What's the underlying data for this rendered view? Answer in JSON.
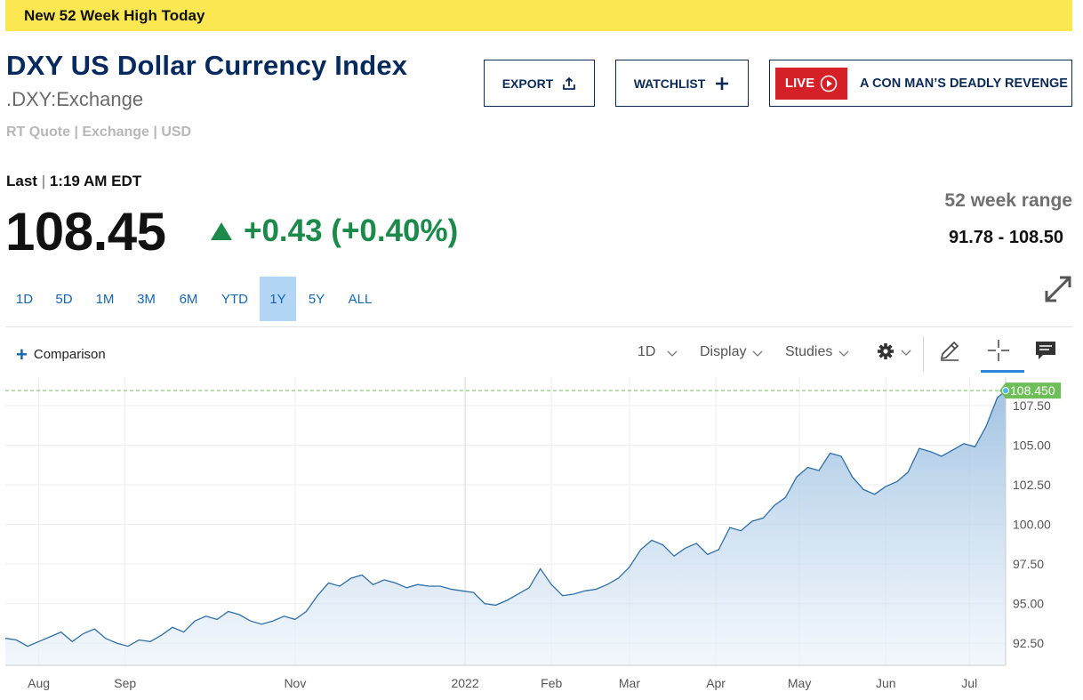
{
  "banner": {
    "text": "New 52 Week High Today"
  },
  "header": {
    "title": "DXY US Dollar Currency Index",
    "symbol": ".DXY:Exchange",
    "quote_type": "RT Quote | Exchange | USD"
  },
  "buttons": {
    "export": "EXPORT",
    "watchlist": "WATCHLIST",
    "live_badge": "LIVE",
    "live_title": "A CON MAN’S DEADLY REVENGE"
  },
  "quote": {
    "last_label": "Last",
    "last_time": "1:19 AM EDT",
    "price": "108.45",
    "change": "+0.43 (+0.40%)",
    "direction": "up",
    "range_label": "52 week range",
    "range_value": "91.78 - 108.50"
  },
  "periods": [
    "1D",
    "5D",
    "1M",
    "3M",
    "6M",
    "YTD",
    "1Y",
    "5Y",
    "ALL"
  ],
  "active_period": "1Y",
  "toolbar": {
    "comparison": "Comparison",
    "interval": "1D",
    "display": "Display",
    "studies": "Studies"
  },
  "icons": {
    "export": "upload-icon",
    "watchlist": "plus-icon",
    "live": "play-circle-icon",
    "expand": "expand-icon",
    "settings": "gear-icon",
    "draw": "pencil-icon",
    "crosshair": "crosshair-icon",
    "comments": "comment-icon"
  },
  "colors": {
    "banner": "#fbe751",
    "title": "#062a5e",
    "up": "#1b8a4a",
    "live": "#d62027",
    "line": "#2f6fa8",
    "current_badge": "#6fbf59",
    "active_period": "#b3d6f7"
  },
  "chart_data": {
    "type": "area",
    "current_value": 108.45,
    "current_label": "108.450",
    "y_ticks": [
      "92.50",
      "95.00",
      "97.50",
      "100.00",
      "102.50",
      "105.00",
      "107.50"
    ],
    "ylim": [
      91.1,
      109.3
    ],
    "x_ticks": [
      "Aug",
      "Sep",
      "Nov",
      "2022",
      "Feb",
      "Mar",
      "Apr",
      "May",
      "Jun",
      "Jul"
    ],
    "x_tick_dates": [
      "2021-08-01",
      "2021-09-01",
      "2021-11-01",
      "2022-01-01",
      "2022-02-01",
      "2022-03-01",
      "2022-04-01",
      "2022-05-01",
      "2022-06-01",
      "2022-07-01"
    ],
    "x_range": [
      "2021-07-20",
      "2022-07-14"
    ],
    "grid": true,
    "series": [
      {
        "x": [
          "2021-07-20",
          "2021-07-24",
          "2021-07-28",
          "2021-08-01",
          "2021-08-05",
          "2021-08-09",
          "2021-08-13",
          "2021-08-17",
          "2021-08-21",
          "2021-08-25",
          "2021-08-29",
          "2021-09-02",
          "2021-09-06",
          "2021-09-10",
          "2021-09-14",
          "2021-09-18",
          "2021-09-22",
          "2021-09-26",
          "2021-09-30",
          "2021-10-04",
          "2021-10-08",
          "2021-10-12",
          "2021-10-16",
          "2021-10-20",
          "2021-10-24",
          "2021-10-28",
          "2021-11-01",
          "2021-11-05",
          "2021-11-09",
          "2021-11-13",
          "2021-11-17",
          "2021-11-21",
          "2021-11-25",
          "2021-11-29",
          "2021-12-03",
          "2021-12-07",
          "2021-12-11",
          "2021-12-15",
          "2021-12-19",
          "2021-12-23",
          "2021-12-27",
          "2021-12-31",
          "2022-01-04",
          "2022-01-08",
          "2022-01-12",
          "2022-01-16",
          "2022-01-20",
          "2022-01-24",
          "2022-01-28",
          "2022-02-01",
          "2022-02-05",
          "2022-02-09",
          "2022-02-13",
          "2022-02-17",
          "2022-02-21",
          "2022-02-25",
          "2022-03-01",
          "2022-03-05",
          "2022-03-09",
          "2022-03-13",
          "2022-03-17",
          "2022-03-21",
          "2022-03-25",
          "2022-03-29",
          "2022-04-02",
          "2022-04-06",
          "2022-04-10",
          "2022-04-14",
          "2022-04-18",
          "2022-04-22",
          "2022-04-26",
          "2022-04-30",
          "2022-05-04",
          "2022-05-08",
          "2022-05-12",
          "2022-05-16",
          "2022-05-20",
          "2022-05-24",
          "2022-05-28",
          "2022-06-01",
          "2022-06-05",
          "2022-06-09",
          "2022-06-13",
          "2022-06-17",
          "2022-06-21",
          "2022-06-25",
          "2022-06-29",
          "2022-07-03",
          "2022-07-07",
          "2022-07-11",
          "2022-07-14"
        ],
        "y": [
          92.8,
          92.7,
          92.3,
          92.6,
          92.9,
          93.2,
          92.6,
          93.1,
          93.4,
          92.8,
          92.5,
          92.3,
          92.7,
          92.6,
          93.0,
          93.5,
          93.2,
          93.9,
          94.2,
          94.0,
          94.5,
          94.3,
          93.9,
          93.7,
          93.9,
          94.2,
          94.0,
          94.5,
          95.5,
          96.3,
          96.1,
          96.6,
          96.8,
          96.2,
          96.5,
          96.3,
          96.0,
          96.2,
          96.1,
          96.1,
          95.9,
          95.8,
          95.7,
          95.0,
          94.9,
          95.2,
          95.6,
          96.0,
          97.2,
          96.2,
          95.5,
          95.6,
          95.8,
          95.9,
          96.2,
          96.6,
          97.3,
          98.4,
          99.0,
          98.7,
          98.0,
          98.5,
          98.8,
          98.1,
          98.4,
          99.8,
          99.6,
          100.2,
          100.4,
          101.2,
          101.7,
          103.0,
          103.6,
          103.4,
          104.5,
          104.3,
          103.0,
          102.2,
          101.9,
          102.4,
          102.7,
          103.3,
          104.8,
          104.6,
          104.3,
          104.7,
          105.1,
          104.9,
          106.2,
          108.0,
          108.45
        ]
      }
    ]
  }
}
